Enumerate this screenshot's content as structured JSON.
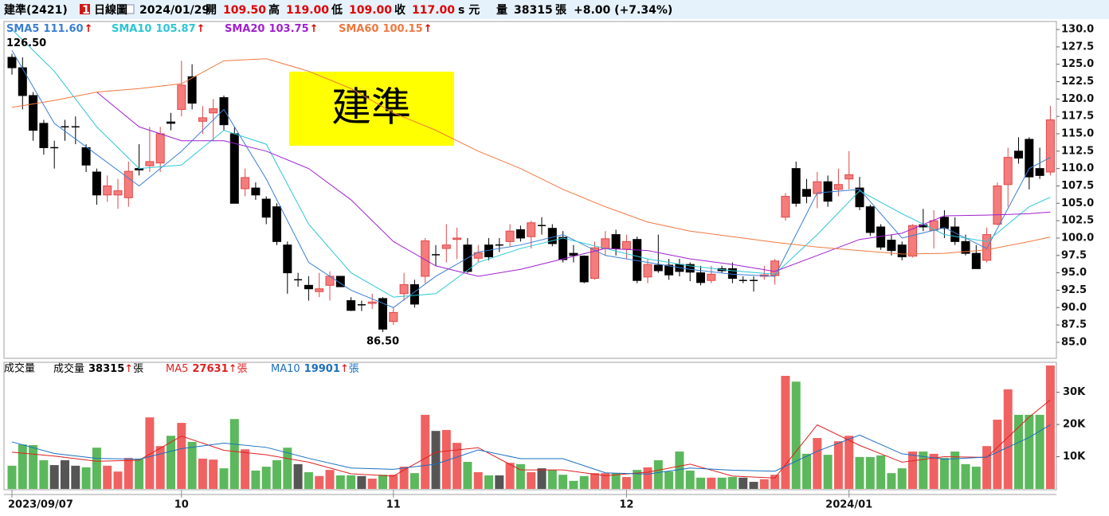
{
  "header": {
    "name": "建準(2421)",
    "badge": "1",
    "period": "日線圖",
    "date": "2024/01/29",
    "quote": [
      {
        "label": "開",
        "value": "109.50"
      },
      {
        "label": "高",
        "value": "119.00"
      },
      {
        "label": "低",
        "value": "109.00"
      },
      {
        "label": "收",
        "value": "117.00"
      }
    ],
    "unit": "s 元",
    "volume_label": "量",
    "volume": "38315",
    "volume_unit": "張",
    "change": "+8.00 (+7.34%)"
  },
  "chart_data": {
    "type": "candlestick",
    "categories": [
      "2023/09/07",
      null,
      null,
      null,
      null,
      null,
      null,
      null,
      null,
      null,
      null,
      null,
      null,
      null,
      null,
      null,
      "10",
      null,
      null,
      null,
      null,
      null,
      null,
      null,
      null,
      null,
      null,
      null,
      null,
      null,
      null,
      null,
      null,
      null,
      null,
      null,
      "11",
      null,
      null,
      null,
      null,
      null,
      null,
      null,
      null,
      null,
      null,
      null,
      null,
      null,
      null,
      null,
      null,
      null,
      null,
      null,
      null,
      null,
      "12",
      null,
      null,
      null,
      null,
      null,
      null,
      null,
      null,
      null,
      null,
      null,
      null,
      null,
      null,
      null,
      null,
      null,
      null,
      null,
      null,
      "2024/01",
      null,
      null,
      null,
      null,
      null,
      null,
      null,
      null,
      null,
      null,
      null,
      null,
      null,
      null,
      null,
      null,
      null,
      null,
      null
    ],
    "open": [
      126,
      124.5,
      120.5,
      116.5,
      113,
      116,
      116,
      113,
      109.5,
      106.2,
      106.2,
      105.8,
      110,
      110.4,
      110.8,
      116.7,
      118.5,
      123.2,
      116.8,
      118,
      120.2,
      115,
      107.1,
      107.2,
      105.6,
      104.5,
      99,
      94,
      93.2,
      92.3,
      93.2,
      94.5,
      91,
      90.4,
      90.6,
      91.3,
      88,
      92,
      93.3,
      94.5,
      97.6,
      98.5,
      99.8,
      99,
      97.1,
      99,
      99,
      99.5,
      101.2,
      100.2,
      101.8,
      101.4,
      100.1,
      97.8,
      97.4,
      94.2,
      98.5,
      100.5,
      98.4,
      99.8,
      94.4,
      96.1,
      96.1,
      96.2,
      96.2,
      95,
      93.9,
      95.6,
      95.6,
      93.9,
      93.9,
      94.5,
      94.6,
      103,
      110,
      107,
      106.4,
      108.1,
      107,
      108.5,
      107.2,
      104.5,
      101.6,
      99.7,
      99,
      97.4,
      101.9,
      101.1,
      103,
      101.6,
      99.5,
      97.8,
      96.8,
      102,
      107.7,
      112.5,
      114.2,
      110,
      109.5
    ],
    "high": [
      126.5,
      126,
      121,
      117,
      114,
      117,
      117.5,
      113.5,
      110,
      109,
      108.5,
      111,
      113.5,
      116,
      116,
      118,
      125.5,
      125,
      119,
      120,
      120.5,
      116,
      110,
      108,
      106,
      105,
      99.5,
      95,
      94.5,
      95,
      95.2,
      94.5,
      91.5,
      91,
      92,
      91.5,
      90,
      95,
      94,
      100,
      99,
      102,
      101.5,
      100,
      99,
      100,
      100,
      102,
      101.8,
      102.5,
      103,
      102,
      101,
      99,
      97.5,
      99.5,
      101,
      101.2,
      100.5,
      100.2,
      97,
      100.5,
      97,
      97,
      96.5,
      96,
      96,
      96,
      96.5,
      94.5,
      94.5,
      96,
      97,
      106.5,
      111,
      108.5,
      109.5,
      109,
      110,
      112.5,
      108.8,
      104.8,
      102,
      100.5,
      99.5,
      102,
      104.2,
      104,
      104,
      103,
      100.5,
      99,
      101.5,
      108,
      113,
      114.5,
      114.5,
      113,
      119
    ],
    "low": [
      123.5,
      118.5,
      114,
      112,
      110,
      114,
      113.5,
      109.5,
      104.8,
      105.2,
      104.2,
      104.5,
      109,
      109.5,
      109.5,
      115.5,
      117.5,
      118.5,
      115,
      114,
      115.5,
      105,
      106,
      105.5,
      102,
      99,
      92,
      93,
      91,
      91.5,
      91,
      93,
      89.5,
      89.5,
      89.8,
      86.5,
      87.5,
      91,
      90,
      93.5,
      96,
      96.5,
      97,
      95,
      96.5,
      96.8,
      98,
      98.8,
      99.5,
      98.5,
      100.5,
      98.8,
      96.5,
      96.5,
      93.5,
      94,
      97.5,
      97.5,
      97,
      93.5,
      93.5,
      95,
      94,
      94.5,
      93.8,
      93.2,
      93.5,
      95,
      93.5,
      93.5,
      92.3,
      94,
      93.3,
      102.5,
      104.5,
      105,
      104.3,
      104.5,
      106,
      107,
      104,
      100.3,
      98.3,
      97.5,
      96.8,
      97.2,
      101,
      98.5,
      100,
      99,
      97.5,
      95.6,
      96.5,
      101.8,
      104.5,
      110.7,
      107,
      108.5,
      109
    ],
    "close": [
      124.5,
      120.5,
      115.5,
      113,
      113,
      116,
      116,
      110.5,
      106.2,
      107.5,
      106.8,
      109.6,
      109.8,
      111,
      115,
      116.5,
      122,
      119.4,
      117.3,
      118.6,
      116.3,
      105,
      108.7,
      106.2,
      103,
      99.5,
      95,
      94,
      92.7,
      92.7,
      94.5,
      93,
      89.6,
      90.4,
      90.8,
      86.9,
      89.3,
      93.3,
      90.5,
      99.6,
      97.6,
      99,
      100,
      95.2,
      97.9,
      97.3,
      99,
      101,
      100,
      102.2,
      101.8,
      99.2,
      96.9,
      97.5,
      93.7,
      98.6,
      99.9,
      98.5,
      99.5,
      93.9,
      96.2,
      95.3,
      94.7,
      95.2,
      95.1,
      93.6,
      94.8,
      95.3,
      94.2,
      93.9,
      93.9,
      94.7,
      96.7,
      106,
      105,
      106,
      108.1,
      105.3,
      107.7,
      109.1,
      104.5,
      100.8,
      98.7,
      98.2,
      97.3,
      101.8,
      101.6,
      102.5,
      101.4,
      99.5,
      97.8,
      95.6,
      100.5,
      107.5,
      111.6,
      111.5,
      108.8,
      109,
      117
    ],
    "up_color": "#f47c7c",
    "up_border": "#e04848",
    "down_color": "#000000",
    "ylim": [
      82.7,
      131.15
    ],
    "yticks": [
      {
        "value": 85,
        "label": "85.0"
      },
      {
        "value": 87.5,
        "label": "87.5"
      },
      {
        "value": 90,
        "label": "90.0"
      },
      {
        "value": 92.5,
        "label": "92.5"
      },
      {
        "value": 95,
        "label": "95.0"
      },
      {
        "value": 97.5,
        "label": "97.5"
      },
      {
        "value": 100,
        "label": "100.0"
      },
      {
        "value": 102.5,
        "label": "102.5"
      },
      {
        "value": 105,
        "label": "105.0"
      },
      {
        "value": 107.5,
        "label": "107.5"
      },
      {
        "value": 110,
        "label": "110.0"
      },
      {
        "value": 112.5,
        "label": "112.5"
      },
      {
        "value": 115,
        "label": "115.0"
      },
      {
        "value": 117.5,
        "label": "117.5"
      },
      {
        "value": 120,
        "label": "120.0"
      },
      {
        "value": 122.5,
        "label": "122.5"
      },
      {
        "value": 125,
        "label": "125.0"
      },
      {
        "value": 127.5,
        "label": "127.5"
      },
      {
        "value": 130,
        "label": "130.0"
      }
    ],
    "trend_marker": "↑",
    "price_lines": [
      {
        "name": "SMA5",
        "color": "#3a7fd5",
        "last_label": "111.60",
        "x": [
          0,
          4,
          8,
          12,
          16,
          20,
          24,
          28,
          32,
          36,
          40,
          44,
          48,
          52,
          56,
          60,
          64,
          68,
          72,
          76,
          80,
          84,
          88,
          92,
          96,
          98
        ],
        "values": [
          127,
          116.5,
          112,
          107.5,
          112.5,
          118.5,
          108.5,
          96.5,
          92.5,
          90,
          94.5,
          98,
          99,
          100.5,
          97.5,
          96.5,
          95.5,
          94.8,
          94.5,
          106.5,
          107,
          100,
          101.5,
          98.5,
          110,
          111.6
        ]
      },
      {
        "name": "SMA10",
        "color": "#2cc6d6",
        "last_label": "105.87",
        "x": [
          0,
          4,
          8,
          12,
          16,
          20,
          24,
          28,
          32,
          36,
          40,
          44,
          48,
          52,
          56,
          60,
          64,
          68,
          72,
          76,
          80,
          84,
          88,
          92,
          96,
          98
        ],
        "values": [
          130,
          124,
          116,
          110,
          110.5,
          115.5,
          113.5,
          102,
          95,
          91.5,
          92,
          96.5,
          98.5,
          100,
          98.5,
          97,
          96,
          95.3,
          94.8,
          100.5,
          106.8,
          103.5,
          100.5,
          99.5,
          104.5,
          105.87
        ]
      },
      {
        "name": "SMA20",
        "color": "#a020d0",
        "last_label": "103.75",
        "x": [
          0,
          4,
          8,
          12,
          16,
          20,
          24,
          28,
          32,
          36,
          40,
          44,
          48,
          52,
          56,
          60,
          64,
          68,
          72,
          76,
          80,
          84,
          88,
          92,
          96,
          98
        ],
        "values": [
          null,
          null,
          121,
          116,
          114,
          114,
          112.5,
          110,
          105.5,
          99.5,
          96,
          94.5,
          95.5,
          97,
          98.5,
          98.2,
          97,
          96.2,
          95.2,
          97.5,
          99.8,
          100.7,
          103.2,
          103.3,
          103.5,
          103.75
        ]
      },
      {
        "name": "SMA60",
        "color": "#f07840",
        "last_label": "100.15",
        "x": [
          0,
          4,
          8,
          12,
          16,
          20,
          24,
          28,
          32,
          36,
          40,
          44,
          48,
          52,
          56,
          60,
          64,
          68,
          72,
          76,
          80,
          84,
          88,
          92,
          96,
          98
        ],
        "values": [
          118.8,
          119.8,
          121,
          121.5,
          122.2,
          125.5,
          125.8,
          124,
          121.5,
          118,
          115.5,
          112.5,
          110,
          107,
          104.5,
          102.3,
          101,
          100.2,
          99.4,
          98.7,
          98.2,
          97.7,
          97.8,
          98.3,
          99.5,
          100.15
        ]
      }
    ],
    "annotations": [
      {
        "text": "126.50",
        "value": 126.5
      },
      {
        "text": "86.50",
        "value": 86.5
      }
    ],
    "label_box": {
      "text": "建準",
      "color": "#ffff00"
    },
    "volume": {
      "title": "成交量",
      "name": "成交量",
      "unit": "張",
      "values": [
        7200,
        13800,
        13600,
        8900,
        7400,
        8900,
        7200,
        6700,
        12800,
        7200,
        5400,
        9600,
        9400,
        22200,
        13300,
        16500,
        20500,
        14600,
        9400,
        9100,
        6400,
        21700,
        12300,
        5700,
        6900,
        8900,
        12800,
        7700,
        5200,
        4000,
        5900,
        4200,
        4200,
        4000,
        3200,
        4400,
        4400,
        6900,
        4900,
        23000,
        18000,
        18300,
        14300,
        8400,
        5200,
        4200,
        4200,
        8100,
        7700,
        5200,
        6400,
        5900,
        4400,
        2500,
        4000,
        4900,
        4900,
        4900,
        3700,
        5900,
        6700,
        8900,
        5400,
        11600,
        5700,
        3500,
        3500,
        3500,
        3700,
        3500,
        2200,
        3000,
        4400,
        35100,
        33300,
        10900,
        15800,
        10600,
        14800,
        16500,
        9900,
        9900,
        10400,
        4900,
        6400,
        11600,
        11600,
        10900,
        9600,
        11600,
        7700,
        6900,
        13300,
        21500,
        30900,
        23000,
        23000,
        23000,
        38315
      ],
      "up_color": "#f06262",
      "down_color": "#5cb85c",
      "flat_color": "#555555",
      "ylim": [
        0,
        39300
      ],
      "yticks": [
        {
          "value": 10000,
          "label": "10K"
        },
        {
          "value": 20000,
          "label": "20K"
        },
        {
          "value": 30000,
          "label": "30K"
        }
      ]
    },
    "volume_lines": [
      {
        "name": "MA5",
        "color": "#e02020",
        "x": [
          0,
          4,
          8,
          12,
          16,
          20,
          24,
          28,
          32,
          36,
          40,
          44,
          48,
          52,
          56,
          60,
          64,
          68,
          72,
          76,
          80,
          84,
          88,
          92,
          96,
          98
        ],
        "values": [
          11400,
          10200,
          8600,
          8900,
          16400,
          12000,
          10600,
          8300,
          4700,
          4000,
          11400,
          12800,
          5900,
          5900,
          4100,
          5200,
          7700,
          4000,
          3400,
          19900,
          13500,
          8300,
          10000,
          9800,
          22300,
          27631
        ]
      },
      {
        "name": "MA10",
        "color": "#1a6fc0",
        "x": [
          0,
          4,
          8,
          12,
          16,
          20,
          24,
          28,
          32,
          36,
          40,
          44,
          48,
          52,
          56,
          60,
          64,
          68,
          72,
          76,
          80,
          84,
          88,
          92,
          96,
          98
        ],
        "values": [
          14600,
          11000,
          9500,
          9200,
          12500,
          14200,
          12900,
          9500,
          6500,
          6100,
          7700,
          12100,
          9400,
          9400,
          5000,
          4600,
          6500,
          5800,
          5500,
          11700,
          16700,
          10900,
          9200,
          9900,
          16000,
          19901
        ]
      }
    ]
  }
}
